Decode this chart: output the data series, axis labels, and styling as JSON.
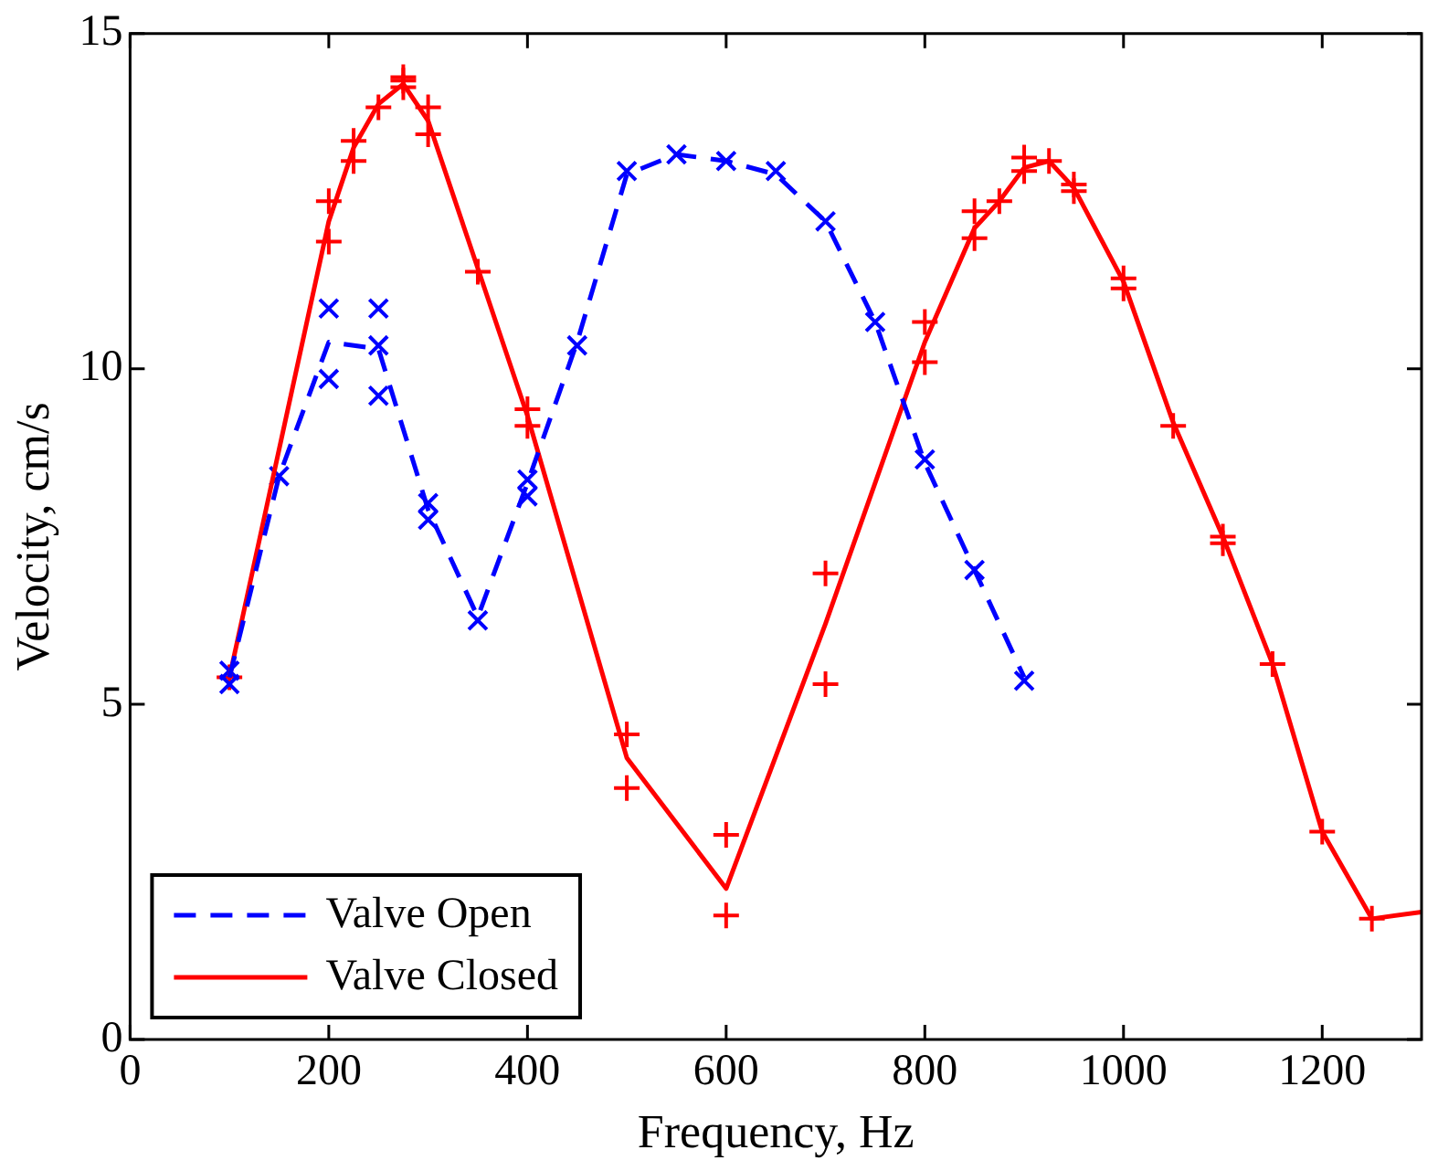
{
  "chart_data": {
    "type": "line",
    "xlabel": "Frequency, Hz",
    "ylabel": "Velocity, cm/s",
    "xlim": [
      0,
      1300
    ],
    "xticks": [
      0,
      200,
      400,
      600,
      800,
      1000,
      1200
    ],
    "ylim": [
      0,
      15
    ],
    "yticks": [
      0,
      5,
      10,
      15
    ],
    "grid": false,
    "legend": "bottom left",
    "series": [
      {
        "name": "Valve Open",
        "color": "#0000ff",
        "line_style": "dashed",
        "marker": "none",
        "x": [
          100,
          150,
          200,
          250,
          300,
          350,
          400,
          450,
          500,
          550,
          600,
          650,
          700,
          750,
          800,
          850,
          900
        ],
        "values": [
          5.4,
          8.4,
          10.4,
          10.3,
          7.9,
          6.3,
          8.3,
          10.4,
          12.9,
          13.2,
          13.1,
          12.9,
          12.2,
          10.7,
          8.6,
          7.0,
          5.4
        ]
      },
      {
        "name": "Valve Closed",
        "color": "#ff0000",
        "line_style": "solid",
        "marker": "none",
        "x": [
          100,
          200,
          225,
          250,
          275,
          300,
          350,
          400,
          500,
          600,
          700,
          800,
          850,
          875,
          900,
          925,
          950,
          1000,
          1050,
          1100,
          1150,
          1200,
          1250,
          1300
        ],
        "values": [
          5.4,
          12.2,
          13.3,
          13.95,
          14.25,
          13.7,
          11.5,
          9.3,
          4.2,
          2.25,
          6.2,
          10.4,
          12.1,
          12.5,
          13.0,
          13.1,
          12.7,
          11.3,
          9.2,
          7.5,
          5.6,
          3.1,
          1.8,
          1.9
        ]
      },
      {
        "type": "scatter",
        "color": "#0000ff",
        "marker": "cross",
        "x": [
          100,
          100,
          150,
          200,
          200,
          250,
          250,
          250,
          300,
          300,
          350,
          400,
          400,
          450,
          500,
          550,
          600,
          650,
          700,
          750,
          800,
          850,
          900
        ],
        "values": [
          5.5,
          5.3,
          8.4,
          10.9,
          9.85,
          10.9,
          10.35,
          9.6,
          8.0,
          7.75,
          6.25,
          8.35,
          8.1,
          10.35,
          12.95,
          13.2,
          13.1,
          12.95,
          12.2,
          10.7,
          8.65,
          7.0,
          5.35
        ]
      },
      {
        "type": "scatter",
        "color": "#ff0000",
        "marker": "plus",
        "x": [
          100,
          200,
          200,
          225,
          225,
          250,
          275,
          275,
          275,
          300,
          300,
          350,
          400,
          400,
          500,
          500,
          600,
          600,
          700,
          700,
          800,
          800,
          850,
          850,
          875,
          900,
          900,
          925,
          950,
          950,
          1000,
          1000,
          1050,
          1100,
          1100,
          1150,
          1200,
          1250
        ],
        "values": [
          5.4,
          12.5,
          11.9,
          13.4,
          13.1,
          13.9,
          14.35,
          14.2,
          14.3,
          13.9,
          13.5,
          11.45,
          9.4,
          9.15,
          4.55,
          3.75,
          3.05,
          1.85,
          6.95,
          5.3,
          10.7,
          10.1,
          12.35,
          11.95,
          12.5,
          13.15,
          12.95,
          13.1,
          12.75,
          12.65,
          11.35,
          11.2,
          9.15,
          7.5,
          7.4,
          5.6,
          3.1,
          1.8
        ]
      }
    ]
  }
}
